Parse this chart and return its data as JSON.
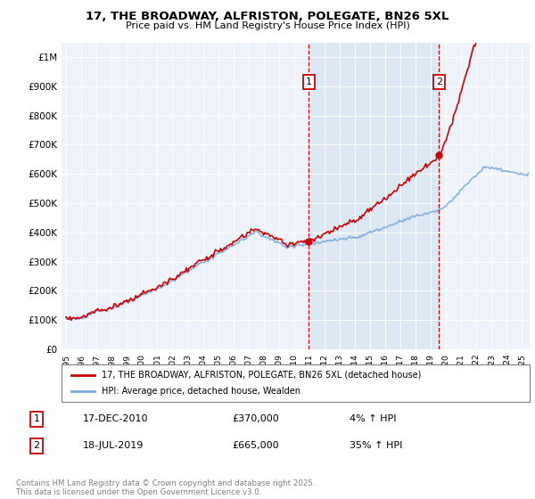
{
  "title": "17, THE BROADWAY, ALFRISTON, POLEGATE, BN26 5XL",
  "subtitle": "Price paid vs. HM Land Registry's House Price Index (HPI)",
  "legend_line1": "17, THE BROADWAY, ALFRISTON, POLEGATE, BN26 5XL (detached house)",
  "legend_line2": "HPI: Average price, detached house, Wealden",
  "annotation1_label": "1",
  "annotation1_date": "17-DEC-2010",
  "annotation1_price": "£370,000",
  "annotation1_pct": "4% ↑ HPI",
  "annotation1_year": 2010.958,
  "annotation1_value": 370000,
  "annotation2_label": "2",
  "annotation2_date": "18-JUL-2019",
  "annotation2_price": "£665,000",
  "annotation2_pct": "35% ↑ HPI",
  "annotation2_year": 2019.542,
  "annotation2_value": 665000,
  "red_color": "#cc0000",
  "blue_color": "#7aaadd",
  "shade_color": "#dde8f5",
  "background_color": "#eef2fb",
  "footer_text": "Contains HM Land Registry data © Crown copyright and database right 2025.\nThis data is licensed under the Open Government Licence v3.0.",
  "ylim": [
    0,
    1050000
  ],
  "xlim_start": 1994.7,
  "xlim_end": 2025.5,
  "yticks": [
    0,
    100000,
    200000,
    300000,
    400000,
    500000,
    600000,
    700000,
    800000,
    900000,
    1000000
  ]
}
